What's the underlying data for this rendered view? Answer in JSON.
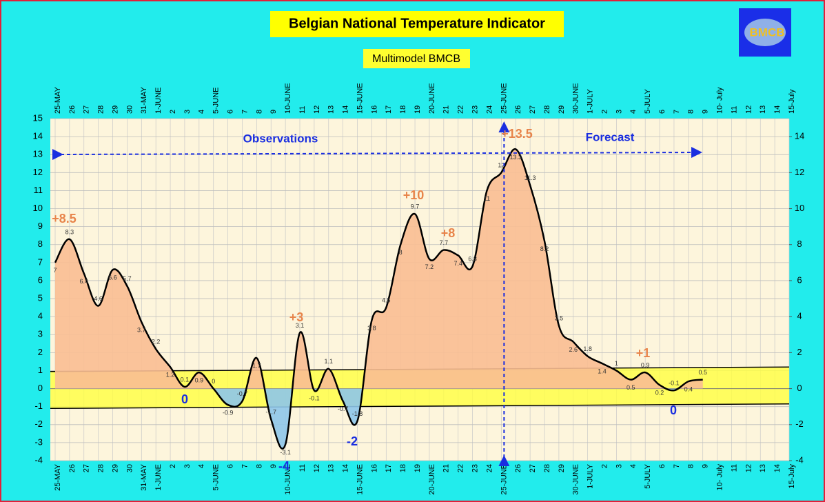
{
  "chart_data": {
    "type": "area",
    "title": "Belgian National Temperature Indicator",
    "subtitle": "Multimodel BMCB",
    "logo": "BMCB",
    "categories": [
      "25-MAY",
      "26",
      "27",
      "28",
      "29",
      "30",
      "31-MAY",
      "1-JUNE",
      "2",
      "3",
      "4",
      "5-JUNE",
      "6",
      "7",
      "8",
      "9",
      "10-JUNE",
      "11",
      "12",
      "13",
      "14",
      "15-JUNE",
      "16",
      "17",
      "18",
      "19",
      "20-JUNE",
      "21",
      "22",
      "23",
      "24",
      "25-JUNE",
      "26",
      "27",
      "28",
      "29",
      "30-JUNE",
      "1-JULY",
      "2",
      "3",
      "4",
      "5-JULY",
      "6",
      "7",
      "8",
      "9",
      "10- July",
      "11",
      "12",
      "13",
      "14",
      "15-July"
    ],
    "series": [
      {
        "name": "Temperature indicator",
        "color": "#000000",
        "fill_above": "#f9be92",
        "fill_below": "#8ec6ea",
        "values": [
          7,
          8.3,
          6.4,
          4.6,
          6.6,
          5.7,
          3.7,
          2.2,
          1.2,
          0.1,
          0.9,
          0,
          -0.9,
          -0.7,
          1.7,
          -1.7,
          -3.1,
          3.1,
          -0.1,
          1.1,
          -0.7,
          -1.8,
          3.8,
          4.5,
          8,
          9.7,
          7.2,
          7.7,
          7.4,
          6.8,
          11,
          12,
          13.3,
          11.3,
          8.2,
          3.5,
          2.6,
          1.8,
          1.4,
          1,
          0.5,
          0.9,
          0.2,
          -0.1,
          0.4,
          0.5,
          null,
          null,
          null,
          null,
          null,
          null
        ]
      }
    ],
    "ylim": [
      -4,
      15
    ],
    "yticks": [
      -4,
      -3,
      -2,
      -1,
      0,
      1,
      2,
      3,
      4,
      5,
      6,
      7,
      8,
      9,
      10,
      11,
      12,
      13,
      14,
      15
    ],
    "y2lim": [
      -4,
      15
    ],
    "y2ticks": [
      -4,
      -2,
      0,
      2,
      4,
      6,
      8,
      10,
      12,
      14
    ],
    "grid": true,
    "annotations": [
      "+8.5",
      "+3",
      "+10",
      "+8",
      "+13.5",
      "+1",
      "0",
      "-4",
      "-2",
      "0",
      "Observations",
      "Forecast"
    ]
  }
}
